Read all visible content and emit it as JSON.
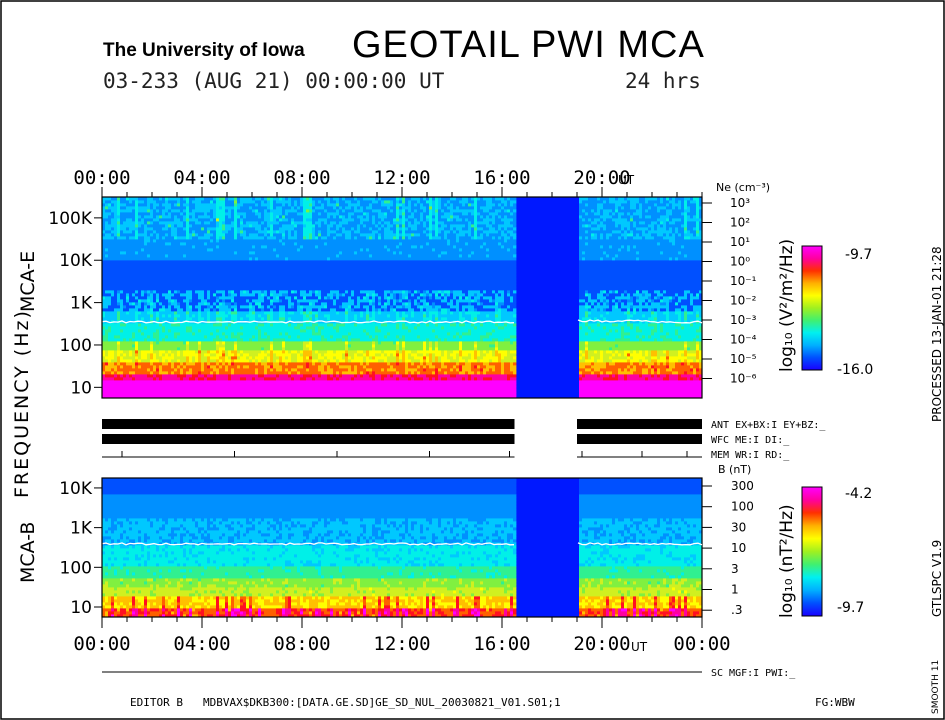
{
  "header": {
    "institution": "The University of Iowa",
    "title": "GEOTAIL PWI MCA",
    "date_line": "03-233 (AUG 21) 00:00:00 UT",
    "duration": "24 hrs"
  },
  "side_text": {
    "processed": "PROCESSED 13-JAN-01 21:28",
    "version": "GTLSPC V1.9",
    "smooth": "SMOOTH 11"
  },
  "footer": {
    "editor": "EDITOR B",
    "path": "MDBVAX$DKB300:[DATA.GE.SD]GE_SD_NUL_20030821_V01.S01;1",
    "fg": "FG:WBW"
  },
  "colors": {
    "data_gap": "#0018ff",
    "colorbar": [
      "#1a00ff",
      "#0050ff",
      "#00b0ff",
      "#00f0f0",
      "#40f070",
      "#a0f020",
      "#ffff00",
      "#ffb000",
      "#ff3000",
      "#ff00a0",
      "#ff00ff"
    ]
  },
  "chart_data": [
    {
      "type": "heatmap",
      "name": "MCA-E electric field spectrogram",
      "panel_label": "MCA-E",
      "ylabel": "FREQUENCY (Hz)",
      "x_tick_labels_top": [
        "00:00",
        "04:00",
        "08:00",
        "12:00",
        "16:00",
        "20:00"
      ],
      "x_unit_label": "UT",
      "xlim_hours": [
        0,
        24
      ],
      "y_tick_labels": [
        "10",
        "100",
        "1K",
        "10K",
        "100K"
      ],
      "ylim_hz": [
        5.6,
        311000
      ],
      "data_gap_hours": [
        16.5,
        19.0
      ],
      "right_axis_title": "Ne (cm⁻³)",
      "right_axis_ticks": [
        "10³",
        "10²",
        "10¹",
        "10⁰",
        "10⁻¹",
        "10⁻²",
        "10⁻³",
        "10⁻⁴",
        "10⁻⁵",
        "10⁻⁶"
      ],
      "colorbar_label": "log₁₀ (V²/m²/Hz)",
      "colorbar_range": [
        -16.0,
        -9.7
      ],
      "colorbar_max_label": "-9.7",
      "colorbar_min_label": "-16.0"
    },
    {
      "type": "heatmap",
      "name": "MCA-B magnetic field spectrogram",
      "panel_label": "MCA-B",
      "x_tick_labels_bottom": [
        "00:00",
        "04:00",
        "08:00",
        "12:00",
        "16:00",
        "20:00",
        "00:00"
      ],
      "x_unit_label": "UT",
      "xlim_hours": [
        0,
        24
      ],
      "y_tick_labels": [
        "10",
        "100",
        "1K",
        "10K"
      ],
      "ylim_hz": [
        5.6,
        17800
      ],
      "data_gap_hours": [
        16.5,
        19.0
      ],
      "right_axis_title": "B (nT)",
      "right_axis_ticks": [
        "300",
        "100",
        "30",
        "10",
        "3",
        "1",
        ".3"
      ],
      "colorbar_label": "log₁₀ (nT²/Hz)",
      "colorbar_range": [
        -9.7,
        -4.2
      ],
      "colorbar_max_label": "-4.2",
      "colorbar_min_label": "-9.7"
    }
  ],
  "status_rows": [
    {
      "label": "ANT EX+BX:I EY+BZ:_",
      "bar": true,
      "ticks": false
    },
    {
      "label": "WFC ME:I DI:_",
      "bar": true,
      "ticks": false
    },
    {
      "label": "MEM WR:I RD:_",
      "bar": false,
      "ticks": true
    }
  ],
  "sc_row": {
    "label": "SC MGF:I PWI:_"
  },
  "mem_tick_hours": [
    0.8,
    5.3,
    9.4,
    13.1,
    16.3,
    19.2,
    21.6,
    23.4
  ]
}
